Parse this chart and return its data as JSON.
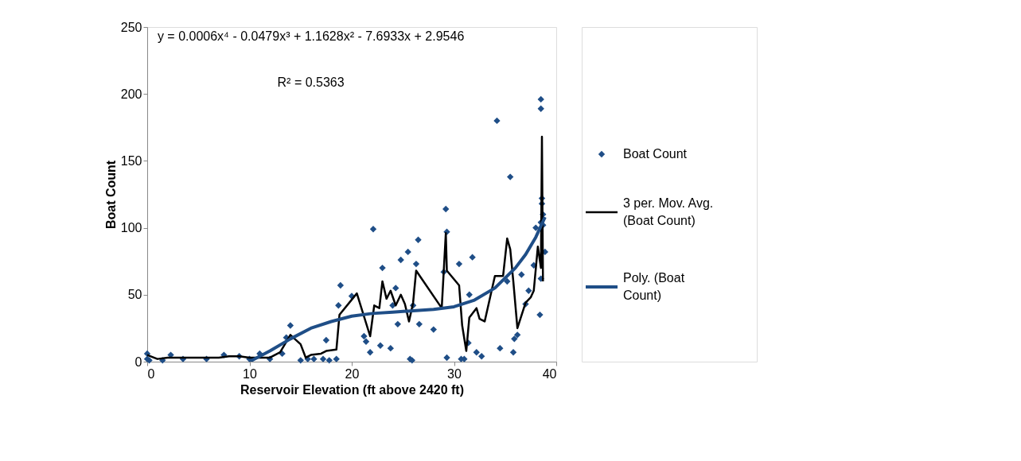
{
  "chart_data": {
    "type": "scatter",
    "xlabel": "Reservoir Elevation  (ft above 2420 ft)",
    "ylabel": "Boat Count",
    "xlim": [
      0,
      40
    ],
    "xticks": [
      0,
      10,
      20,
      30,
      40
    ],
    "ylim": [
      0,
      250
    ],
    "yticks": [
      0,
      50,
      100,
      150,
      200,
      250
    ],
    "grid": false,
    "legend": "right",
    "annotations": [
      "y = 0.0006x⁴ - 0.0479x³ + 1.1628x² - 7.6933x + 2.9546",
      "R² = 0.5363"
    ],
    "series": [
      {
        "name": "Boat Count",
        "marker": "diamond",
        "color": "#1f4e87",
        "x": [
          0,
          0,
          0.2,
          1.5,
          2.3,
          3.5,
          5.8,
          7.5,
          9,
          10,
          11,
          12,
          13.2,
          13.6,
          14,
          15,
          15.7,
          16.3,
          17.2,
          17.5,
          17.8,
          18.5,
          18.7,
          18.9,
          20,
          21.2,
          21.4,
          21.8,
          22.1,
          22.8,
          23,
          23.8,
          24,
          24.3,
          24.5,
          24.8,
          25.5,
          25.7,
          25.9,
          26,
          26.3,
          26.5,
          26.6,
          28,
          29,
          29.2,
          29.3,
          29.3,
          30.5,
          30.7,
          31,
          31.4,
          31.5,
          31.8,
          32.2,
          32.7,
          34.2,
          34.5,
          35.2,
          35.5,
          35.8,
          35.9,
          36.2,
          36.6,
          37,
          37.3,
          37.8,
          38,
          38.5,
          38.5,
          38.5,
          38.6,
          38.6,
          38.7,
          38.5,
          38.4,
          38.9,
          38.7
        ],
        "values": [
          2,
          6,
          1,
          1,
          5,
          2,
          2,
          5,
          4,
          2,
          6,
          2,
          6,
          18,
          27,
          1,
          2,
          2,
          2,
          16,
          1,
          2,
          42,
          57,
          49,
          19,
          15,
          7,
          99,
          12,
          70,
          10,
          42,
          55,
          28,
          76,
          82,
          2,
          1,
          42,
          73,
          91,
          28,
          24,
          67,
          114,
          97,
          3,
          73,
          2,
          2,
          14,
          50,
          78,
          7,
          4,
          180,
          10,
          60,
          138,
          7,
          17,
          20,
          65,
          43,
          53,
          72,
          100,
          104,
          196,
          189,
          118,
          122,
          110,
          62,
          35,
          82,
          102
        ]
      },
      {
        "name": "3 per. Mov. Avg. (Boat Count)",
        "type": "line",
        "line_style": "solid",
        "marker": "none",
        "color": "#000000",
        "x": [
          0,
          1,
          2,
          5,
          7,
          8,
          9,
          10,
          11,
          12,
          13,
          14,
          15,
          15.5,
          16,
          17,
          17.5,
          18.5,
          18.8,
          20.5,
          21.8,
          22.2,
          22.7,
          23,
          23.4,
          23.8,
          24.3,
          24.8,
          25.2,
          25.6,
          26,
          26.3,
          28.8,
          29.2,
          29.3,
          30.5,
          30.8,
          31.2,
          31.5,
          32.2,
          32.5,
          33,
          34,
          34.8,
          35.2,
          35.5,
          35.8,
          36.2,
          37,
          37.5,
          37.8,
          38.2,
          38.5,
          38.6,
          38.7
        ],
        "values": [
          5,
          2,
          3,
          3,
          3,
          4,
          4,
          3,
          3,
          3,
          7,
          20,
          13,
          3,
          5,
          6,
          8,
          9,
          35,
          51,
          19,
          42,
          40,
          60,
          47,
          53,
          42,
          50,
          43,
          30,
          44,
          68,
          40,
          96,
          68,
          57,
          27,
          8,
          33,
          40,
          32,
          30,
          64,
          64,
          92,
          84,
          60,
          25,
          44,
          48,
          53,
          86,
          70,
          168,
          60
        ]
      },
      {
        "name": "Poly. (Boat Count)",
        "type": "line",
        "line_style": "solid",
        "marker": "none",
        "color": "#1f4e87",
        "x": [
          10,
          12,
          14,
          16,
          18,
          20,
          22,
          24,
          26,
          28,
          30,
          32,
          34,
          36,
          37,
          38,
          38.9
        ],
        "values": [
          0,
          8,
          17,
          25,
          30,
          34,
          36,
          37,
          38,
          39,
          41,
          46,
          55,
          70,
          80,
          93,
          108
        ]
      }
    ]
  }
}
